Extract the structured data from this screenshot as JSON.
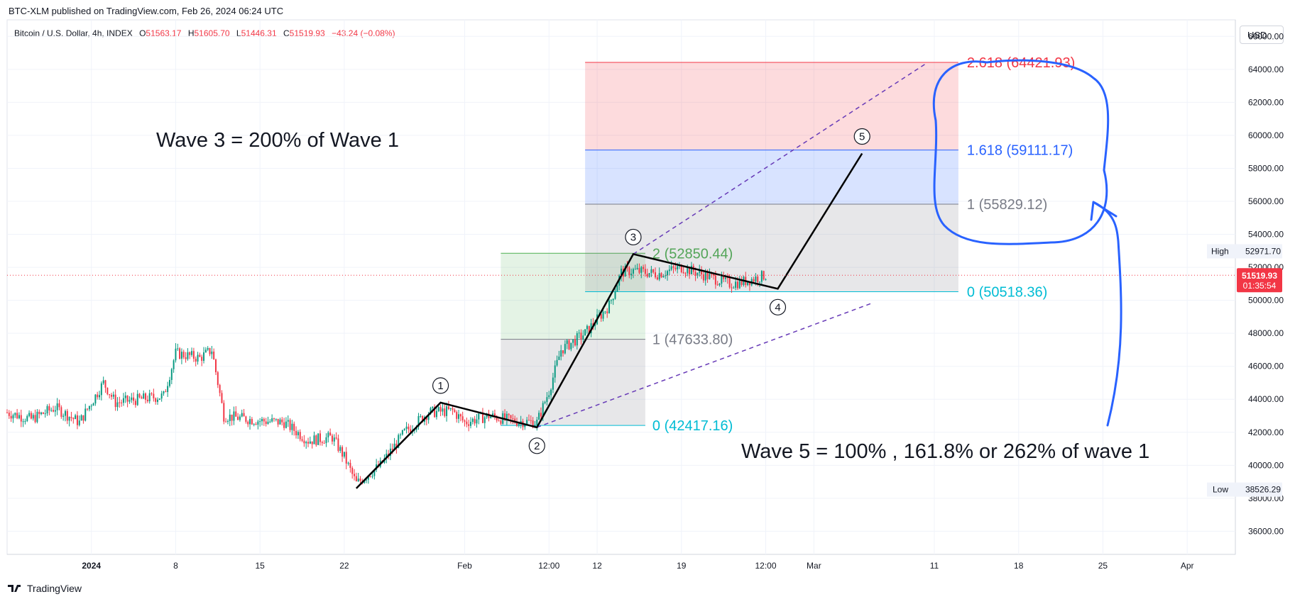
{
  "header": {
    "publish_line": "BTC-XLM published on TradingView.com, Feb 26, 2024 06:24 UTC"
  },
  "ohlc": {
    "symbol": "Bitcoin / U.S. Dollar, 4h, INDEX",
    "o_label": "O",
    "o": "51563.17",
    "h_label": "H",
    "h": "51605.70",
    "l_label": "L",
    "l": "51446.31",
    "c_label": "C",
    "c": "51519.93",
    "change": "−43.24 (−0.08%)"
  },
  "currency_button": "USD",
  "footer": {
    "brand": "TradingView"
  },
  "colors": {
    "up": "#089981",
    "down": "#f23645",
    "last_price": "#f23645",
    "wave_line": "#000000",
    "channel": "#673ab7",
    "fib_upper_red": "#f23645",
    "fib_blue": "#2962ff",
    "fib_teal": "#00bcd4",
    "fib_gray": "#787b86",
    "fib_green": "#4caf50",
    "annotation_blue": "#2962ff"
  },
  "chart_data": {
    "type": "candlestick",
    "instrument": "Bitcoin / U.S. Dollar, 4h, INDEX",
    "ylim": [
      34600,
      67000
    ],
    "y_ticks": [
      "36000.00",
      "38000.00",
      "40000.00",
      "42000.00",
      "44000.00",
      "46000.00",
      "48000.00",
      "50000.00",
      "52000.00",
      "54000.00",
      "56000.00",
      "58000.00",
      "60000.00",
      "62000.00",
      "64000.00",
      "66000.00"
    ],
    "y_tick_values": [
      36000,
      38000,
      40000,
      42000,
      44000,
      46000,
      48000,
      50000,
      52000,
      54000,
      56000,
      58000,
      60000,
      62000,
      64000,
      66000
    ],
    "x_ticks": [
      "2024",
      "8",
      "15",
      "22",
      "Feb",
      "12:00",
      "12",
      "19",
      "12:00",
      "Mar",
      "11",
      "18",
      "25",
      "Apr"
    ],
    "x_tick_dates": [
      "2024-01-01",
      "2024-01-08",
      "2024-01-15",
      "2024-01-22",
      "2024-02-01",
      "2024-02-08",
      "2024-02-12",
      "2024-02-19",
      "2024-02-26",
      "2024-03-01",
      "2024-03-11",
      "2024-03-18",
      "2024-03-25",
      "2024-04-01"
    ],
    "x_range": [
      "2023-12-25",
      "2024-04-05"
    ],
    "price_path": [
      [
        "2023-12-25",
        43200
      ],
      [
        "2023-12-27",
        42800
      ],
      [
        "2023-12-29",
        43500
      ],
      [
        "2023-12-31",
        42600
      ],
      [
        "2024-01-02",
        45000
      ],
      [
        "2024-01-03",
        43800
      ],
      [
        "2024-01-05",
        44000
      ],
      [
        "2024-01-07",
        44200
      ],
      [
        "2024-01-08",
        46800
      ],
      [
        "2024-01-10",
        46500
      ],
      [
        "2024-01-11",
        47000
      ],
      [
        "2024-01-12",
        43000
      ],
      [
        "2024-01-13",
        42900
      ],
      [
        "2024-01-15",
        42700
      ],
      [
        "2024-01-17",
        42600
      ],
      [
        "2024-01-19",
        41500
      ],
      [
        "2024-01-21",
        41700
      ],
      [
        "2024-01-22",
        40500
      ],
      [
        "2024-01-23",
        38900
      ],
      [
        "2024-01-25",
        40000
      ],
      [
        "2024-01-27",
        42000
      ],
      [
        "2024-01-29",
        43200
      ],
      [
        "2024-01-31",
        43300
      ],
      [
        "2024-02-01",
        42600
      ],
      [
        "2024-02-03",
        43000
      ],
      [
        "2024-02-05",
        42700
      ],
      [
        "2024-02-07",
        42600
      ],
      [
        "2024-02-08",
        44500
      ],
      [
        "2024-02-09",
        47000
      ],
      [
        "2024-02-11",
        48000
      ],
      [
        "2024-02-13",
        49700
      ],
      [
        "2024-02-14",
        51700
      ],
      [
        "2024-02-15",
        51800
      ],
      [
        "2024-02-17",
        51600
      ],
      [
        "2024-02-19",
        52000
      ],
      [
        "2024-02-21",
        51500
      ],
      [
        "2024-02-23",
        51000
      ],
      [
        "2024-02-24",
        51100
      ],
      [
        "2024-02-26",
        51520
      ]
    ],
    "last_price": "51519.93",
    "countdown": "01:35:54",
    "high_label": "High",
    "high_value": "52971.70",
    "low_label": "Low",
    "low_value": "38526.29",
    "wave_points": [
      {
        "label": "1",
        "date": "2024-01-30",
        "price": 43800
      },
      {
        "label": "2",
        "date": "2024-02-07",
        "price": 42300
      },
      {
        "label": "3",
        "date": "2024-02-15",
        "price": 52800
      },
      {
        "label": "4",
        "date": "2024-02-27",
        "price": 50700
      },
      {
        "label": "5",
        "date": "2024-03-05",
        "price": 58900
      }
    ],
    "wave_start": {
      "date": "2024-01-23",
      "price": 38600
    },
    "fib_wave3": [
      {
        "text": "2 (52850.44)",
        "price": 52850.44,
        "color": "#4caf50"
      },
      {
        "text": "1 (47633.80)",
        "price": 47633.8,
        "color": "#787b86"
      },
      {
        "text": "0 (42417.16)",
        "price": 42417.16,
        "color": "#00bcd4"
      }
    ],
    "fib_wave5": [
      {
        "text": "2.618 (64421.93)",
        "price": 64421.93,
        "color": "#f23645"
      },
      {
        "text": "1.618 (59111.17)",
        "price": 59111.17,
        "color": "#2962ff"
      },
      {
        "text": "1 (55829.12)",
        "price": 55829.12,
        "color": "#787b86"
      },
      {
        "text": "0 (50518.36)",
        "price": 50518.36,
        "color": "#00bcd4"
      }
    ],
    "annotations": [
      "Wave 3 = 200% of Wave 1",
      "Wave 5 = 100% , 161.8% or 262% of wave 1"
    ]
  }
}
